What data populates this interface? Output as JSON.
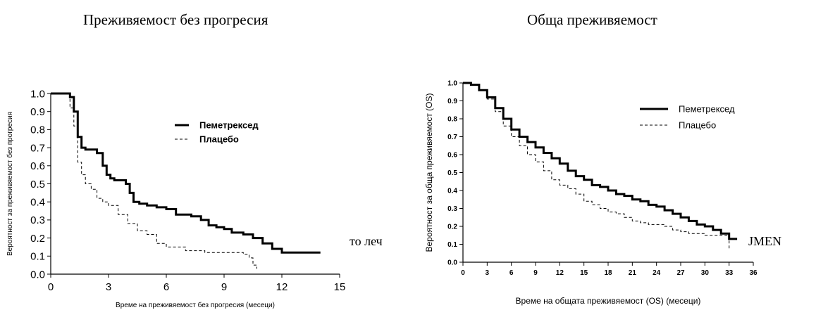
{
  "charts": [
    {
      "title": "Преживяемост без прогресия",
      "type": "line",
      "xlabel": "Време на преживяемост без прогресия (месеци)",
      "ylabel": "Вероятност за преживяемост без прогресия",
      "xlim": [
        0,
        15
      ],
      "ylim": [
        0,
        1.0
      ],
      "xticks": [
        "0",
        "3",
        "6",
        "9",
        "12",
        "15"
      ],
      "yticks": [
        "0.0",
        "0.1",
        "0.2",
        "0.3",
        "0.4",
        "0.5",
        "0.6",
        "0.7",
        "0.8",
        "0.9",
        "1.0"
      ],
      "legend_placement": "top-right",
      "series": [
        {
          "name": "Пеметрексед",
          "style": "solid",
          "x": [
            0,
            0.8,
            1.0,
            1.2,
            1.4,
            1.6,
            1.8,
            2.0,
            2.4,
            2.7,
            2.9,
            3.1,
            3.3,
            3.6,
            3.9,
            4.1,
            4.3,
            4.6,
            5.0,
            5.5,
            6.0,
            6.5,
            7.3,
            7.8,
            8.2,
            8.6,
            9.0,
            9.4,
            10.0,
            10.5,
            11.0,
            11.5,
            12.0,
            14.0
          ],
          "y": [
            1.0,
            1.0,
            0.98,
            0.9,
            0.76,
            0.7,
            0.69,
            0.69,
            0.67,
            0.6,
            0.55,
            0.53,
            0.52,
            0.52,
            0.5,
            0.45,
            0.4,
            0.39,
            0.38,
            0.37,
            0.36,
            0.33,
            0.32,
            0.3,
            0.27,
            0.26,
            0.25,
            0.23,
            0.22,
            0.2,
            0.17,
            0.14,
            0.12,
            0.12
          ]
        },
        {
          "name": "Плацебо",
          "style": "dashed",
          "x": [
            0,
            0.8,
            1.0,
            1.2,
            1.4,
            1.6,
            1.8,
            2.1,
            2.4,
            2.7,
            3.0,
            3.5,
            4.0,
            4.5,
            5.0,
            5.5,
            6.0,
            7.0,
            8.0,
            9.0,
            10.0,
            10.3,
            10.5,
            10.7
          ],
          "y": [
            1.0,
            1.0,
            0.92,
            0.82,
            0.62,
            0.55,
            0.5,
            0.47,
            0.42,
            0.4,
            0.38,
            0.33,
            0.28,
            0.24,
            0.22,
            0.17,
            0.15,
            0.13,
            0.12,
            0.12,
            0.11,
            0.09,
            0.05,
            0.03
          ]
        }
      ]
    },
    {
      "title": "Обща преживяемост",
      "type": "line",
      "xlabel": "Време на общата преживяемост (OS) (месеци)",
      "ylabel": "Вероятност за обща преживяемост (OS)",
      "xlim": [
        0,
        36
      ],
      "ylim": [
        0,
        1.0
      ],
      "xticks": [
        "0",
        "3",
        "6",
        "9",
        "12",
        "15",
        "18",
        "21",
        "24",
        "27",
        "30",
        "33",
        "36"
      ],
      "yticks": [
        "0.0",
        "0.1",
        "0.2",
        "0.3",
        "0.4",
        "0.5",
        "0.6",
        "0.7",
        "0.8",
        "0.9",
        "1.0"
      ],
      "legend_placement": "top-right",
      "series": [
        {
          "name": "Пеметрексед",
          "style": "solid",
          "x": [
            0,
            1,
            2,
            3,
            4,
            5,
            6,
            7,
            8,
            9,
            10,
            11,
            12,
            13,
            14,
            15,
            16,
            17,
            18,
            19,
            20,
            21,
            22,
            23,
            24,
            25,
            26,
            27,
            28,
            29,
            30,
            31,
            32,
            33,
            34
          ],
          "y": [
            1.0,
            0.99,
            0.96,
            0.92,
            0.86,
            0.8,
            0.74,
            0.7,
            0.67,
            0.64,
            0.61,
            0.58,
            0.55,
            0.51,
            0.48,
            0.46,
            0.43,
            0.42,
            0.4,
            0.38,
            0.37,
            0.35,
            0.34,
            0.32,
            0.31,
            0.29,
            0.27,
            0.25,
            0.23,
            0.21,
            0.2,
            0.18,
            0.16,
            0.13,
            0.13
          ]
        },
        {
          "name": "Плацебо",
          "style": "dashed",
          "x": [
            0,
            1,
            2,
            3,
            4,
            5,
            6,
            7,
            8,
            9,
            10,
            11,
            12,
            13,
            14,
            15,
            16,
            17,
            18,
            19,
            20,
            21,
            22,
            23,
            24,
            25,
            26,
            27,
            28,
            29,
            30,
            31,
            32,
            33
          ],
          "y": [
            1.0,
            0.99,
            0.96,
            0.91,
            0.84,
            0.76,
            0.7,
            0.65,
            0.6,
            0.56,
            0.51,
            0.46,
            0.43,
            0.41,
            0.38,
            0.34,
            0.32,
            0.3,
            0.28,
            0.27,
            0.25,
            0.23,
            0.22,
            0.21,
            0.21,
            0.2,
            0.18,
            0.17,
            0.16,
            0.16,
            0.15,
            0.15,
            0.15,
            0.07
          ]
        }
      ]
    }
  ],
  "overlay_text": {
    "left_fragment": "то леч",
    "right_fragment": "JMEN"
  }
}
